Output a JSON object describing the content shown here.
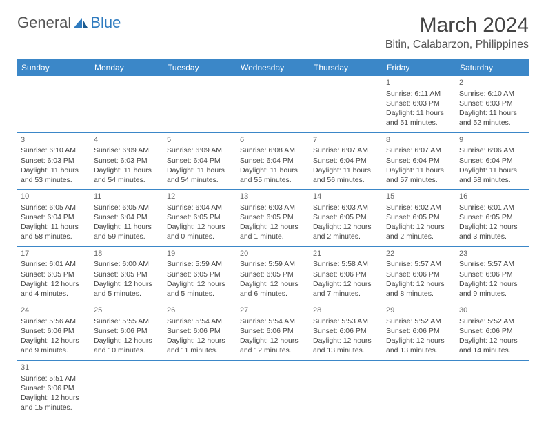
{
  "logo": {
    "text1": "General",
    "text2": "Blue"
  },
  "title": "March 2024",
  "location": "Bitin, Calabarzon, Philippines",
  "columns": [
    "Sunday",
    "Monday",
    "Tuesday",
    "Wednesday",
    "Thursday",
    "Friday",
    "Saturday"
  ],
  "colors": {
    "header_bg": "#3b87c8",
    "border": "#3b87c8"
  },
  "weeks": [
    [
      null,
      null,
      null,
      null,
      null,
      {
        "d": "1",
        "sr": "Sunrise: 6:11 AM",
        "ss": "Sunset: 6:03 PM",
        "dl1": "Daylight: 11 hours",
        "dl2": "and 51 minutes."
      },
      {
        "d": "2",
        "sr": "Sunrise: 6:10 AM",
        "ss": "Sunset: 6:03 PM",
        "dl1": "Daylight: 11 hours",
        "dl2": "and 52 minutes."
      }
    ],
    [
      {
        "d": "3",
        "sr": "Sunrise: 6:10 AM",
        "ss": "Sunset: 6:03 PM",
        "dl1": "Daylight: 11 hours",
        "dl2": "and 53 minutes."
      },
      {
        "d": "4",
        "sr": "Sunrise: 6:09 AM",
        "ss": "Sunset: 6:03 PM",
        "dl1": "Daylight: 11 hours",
        "dl2": "and 54 minutes."
      },
      {
        "d": "5",
        "sr": "Sunrise: 6:09 AM",
        "ss": "Sunset: 6:04 PM",
        "dl1": "Daylight: 11 hours",
        "dl2": "and 54 minutes."
      },
      {
        "d": "6",
        "sr": "Sunrise: 6:08 AM",
        "ss": "Sunset: 6:04 PM",
        "dl1": "Daylight: 11 hours",
        "dl2": "and 55 minutes."
      },
      {
        "d": "7",
        "sr": "Sunrise: 6:07 AM",
        "ss": "Sunset: 6:04 PM",
        "dl1": "Daylight: 11 hours",
        "dl2": "and 56 minutes."
      },
      {
        "d": "8",
        "sr": "Sunrise: 6:07 AM",
        "ss": "Sunset: 6:04 PM",
        "dl1": "Daylight: 11 hours",
        "dl2": "and 57 minutes."
      },
      {
        "d": "9",
        "sr": "Sunrise: 6:06 AM",
        "ss": "Sunset: 6:04 PM",
        "dl1": "Daylight: 11 hours",
        "dl2": "and 58 minutes."
      }
    ],
    [
      {
        "d": "10",
        "sr": "Sunrise: 6:05 AM",
        "ss": "Sunset: 6:04 PM",
        "dl1": "Daylight: 11 hours",
        "dl2": "and 58 minutes."
      },
      {
        "d": "11",
        "sr": "Sunrise: 6:05 AM",
        "ss": "Sunset: 6:04 PM",
        "dl1": "Daylight: 11 hours",
        "dl2": "and 59 minutes."
      },
      {
        "d": "12",
        "sr": "Sunrise: 6:04 AM",
        "ss": "Sunset: 6:05 PM",
        "dl1": "Daylight: 12 hours",
        "dl2": "and 0 minutes."
      },
      {
        "d": "13",
        "sr": "Sunrise: 6:03 AM",
        "ss": "Sunset: 6:05 PM",
        "dl1": "Daylight: 12 hours",
        "dl2": "and 1 minute."
      },
      {
        "d": "14",
        "sr": "Sunrise: 6:03 AM",
        "ss": "Sunset: 6:05 PM",
        "dl1": "Daylight: 12 hours",
        "dl2": "and 2 minutes."
      },
      {
        "d": "15",
        "sr": "Sunrise: 6:02 AM",
        "ss": "Sunset: 6:05 PM",
        "dl1": "Daylight: 12 hours",
        "dl2": "and 2 minutes."
      },
      {
        "d": "16",
        "sr": "Sunrise: 6:01 AM",
        "ss": "Sunset: 6:05 PM",
        "dl1": "Daylight: 12 hours",
        "dl2": "and 3 minutes."
      }
    ],
    [
      {
        "d": "17",
        "sr": "Sunrise: 6:01 AM",
        "ss": "Sunset: 6:05 PM",
        "dl1": "Daylight: 12 hours",
        "dl2": "and 4 minutes."
      },
      {
        "d": "18",
        "sr": "Sunrise: 6:00 AM",
        "ss": "Sunset: 6:05 PM",
        "dl1": "Daylight: 12 hours",
        "dl2": "and 5 minutes."
      },
      {
        "d": "19",
        "sr": "Sunrise: 5:59 AM",
        "ss": "Sunset: 6:05 PM",
        "dl1": "Daylight: 12 hours",
        "dl2": "and 5 minutes."
      },
      {
        "d": "20",
        "sr": "Sunrise: 5:59 AM",
        "ss": "Sunset: 6:05 PM",
        "dl1": "Daylight: 12 hours",
        "dl2": "and 6 minutes."
      },
      {
        "d": "21",
        "sr": "Sunrise: 5:58 AM",
        "ss": "Sunset: 6:06 PM",
        "dl1": "Daylight: 12 hours",
        "dl2": "and 7 minutes."
      },
      {
        "d": "22",
        "sr": "Sunrise: 5:57 AM",
        "ss": "Sunset: 6:06 PM",
        "dl1": "Daylight: 12 hours",
        "dl2": "and 8 minutes."
      },
      {
        "d": "23",
        "sr": "Sunrise: 5:57 AM",
        "ss": "Sunset: 6:06 PM",
        "dl1": "Daylight: 12 hours",
        "dl2": "and 9 minutes."
      }
    ],
    [
      {
        "d": "24",
        "sr": "Sunrise: 5:56 AM",
        "ss": "Sunset: 6:06 PM",
        "dl1": "Daylight: 12 hours",
        "dl2": "and 9 minutes."
      },
      {
        "d": "25",
        "sr": "Sunrise: 5:55 AM",
        "ss": "Sunset: 6:06 PM",
        "dl1": "Daylight: 12 hours",
        "dl2": "and 10 minutes."
      },
      {
        "d": "26",
        "sr": "Sunrise: 5:54 AM",
        "ss": "Sunset: 6:06 PM",
        "dl1": "Daylight: 12 hours",
        "dl2": "and 11 minutes."
      },
      {
        "d": "27",
        "sr": "Sunrise: 5:54 AM",
        "ss": "Sunset: 6:06 PM",
        "dl1": "Daylight: 12 hours",
        "dl2": "and 12 minutes."
      },
      {
        "d": "28",
        "sr": "Sunrise: 5:53 AM",
        "ss": "Sunset: 6:06 PM",
        "dl1": "Daylight: 12 hours",
        "dl2": "and 13 minutes."
      },
      {
        "d": "29",
        "sr": "Sunrise: 5:52 AM",
        "ss": "Sunset: 6:06 PM",
        "dl1": "Daylight: 12 hours",
        "dl2": "and 13 minutes."
      },
      {
        "d": "30",
        "sr": "Sunrise: 5:52 AM",
        "ss": "Sunset: 6:06 PM",
        "dl1": "Daylight: 12 hours",
        "dl2": "and 14 minutes."
      }
    ],
    [
      {
        "d": "31",
        "sr": "Sunrise: 5:51 AM",
        "ss": "Sunset: 6:06 PM",
        "dl1": "Daylight: 12 hours",
        "dl2": "and 15 minutes."
      },
      null,
      null,
      null,
      null,
      null,
      null
    ]
  ]
}
